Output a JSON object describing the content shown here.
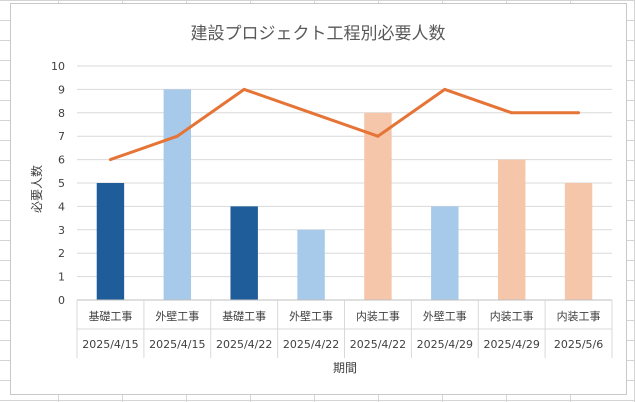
{
  "chart_data": {
    "type": "bar",
    "title": "建設プロジェクト工程別必要人数",
    "xlabel": "期間",
    "ylabel": "必要人数",
    "ylim": [
      0,
      10
    ],
    "yticks": [
      "0",
      "1",
      "2",
      "3",
      "4",
      "5",
      "6",
      "7",
      "8",
      "9",
      "10"
    ],
    "grid": true,
    "categories": [
      {
        "process": "基礎工事",
        "date": "2025/4/15"
      },
      {
        "process": "外壁工事",
        "date": "2025/4/15"
      },
      {
        "process": "基礎工事",
        "date": "2025/4/22"
      },
      {
        "process": "外壁工事",
        "date": "2025/4/22"
      },
      {
        "process": "内装工事",
        "date": "2025/4/22"
      },
      {
        "process": "外壁工事",
        "date": "2025/4/29"
      },
      {
        "process": "内装工事",
        "date": "2025/4/29"
      },
      {
        "process": "内装工事",
        "date": "2025/5/6"
      }
    ],
    "series": [
      {
        "type": "bar",
        "values": [
          5,
          9,
          4,
          3,
          8,
          4,
          6,
          5
        ]
      },
      {
        "type": "line",
        "values": [
          6,
          7,
          9,
          8,
          7,
          9,
          8,
          8
        ],
        "color": "#E57436"
      }
    ],
    "process_colors": {
      "基礎工事": "#1F5C9A",
      "外壁工事": "#A7C9EA",
      "内装工事": "#F5C6AA"
    }
  }
}
